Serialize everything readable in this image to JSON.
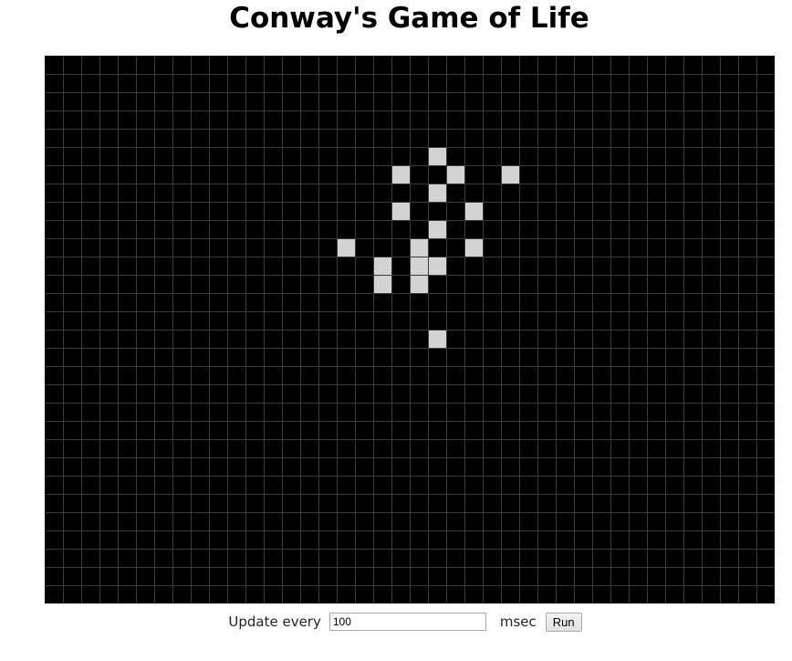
{
  "title": "Conway's Game of Life",
  "board": {
    "columns": 40,
    "rows": 30,
    "background_color": "#000000",
    "grid_line_color": "#3c3c3c",
    "live_cell_color": "#d3d3d3",
    "live_cells": [
      [
        21,
        5
      ],
      [
        19,
        6
      ],
      [
        22,
        6
      ],
      [
        25,
        6
      ],
      [
        21,
        7
      ],
      [
        19,
        8
      ],
      [
        23,
        8
      ],
      [
        21,
        9
      ],
      [
        16,
        10
      ],
      [
        20,
        10
      ],
      [
        23,
        10
      ],
      [
        18,
        11
      ],
      [
        20,
        11
      ],
      [
        21,
        11
      ],
      [
        18,
        12
      ],
      [
        20,
        12
      ],
      [
        21,
        15
      ]
    ]
  },
  "controls": {
    "update_label": "Update every",
    "interval_value": "100",
    "unit_label": "msec",
    "run_label": "Run"
  }
}
